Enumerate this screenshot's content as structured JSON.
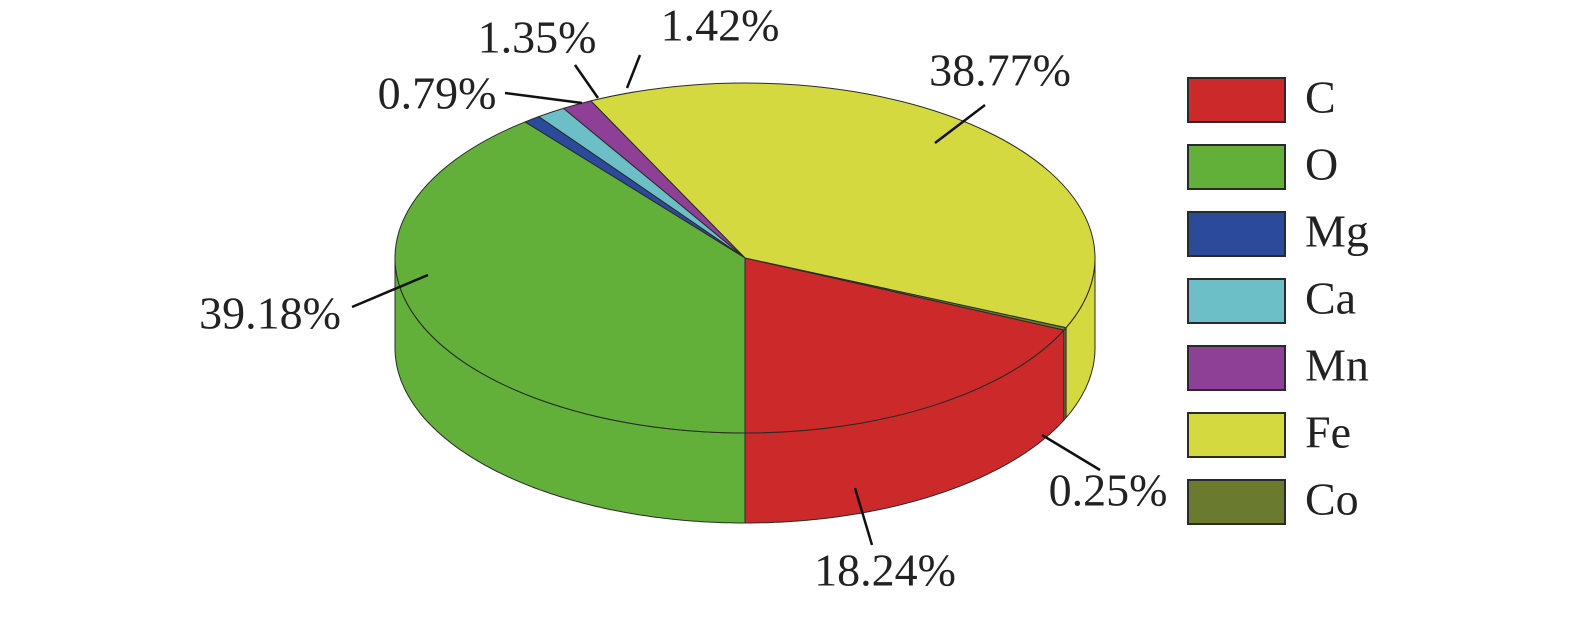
{
  "chart_data": {
    "type": "pie",
    "categories": [
      "C",
      "O",
      "Mg",
      "Ca",
      "Mn",
      "Fe",
      "Co"
    ],
    "values": [
      18.24,
      39.18,
      0.79,
      1.35,
      1.42,
      38.77,
      0.25
    ],
    "value_labels": [
      "18.24%",
      "39.18%",
      "0.79%",
      "1.35%",
      "1.42%",
      "38.77%",
      "0.25%"
    ],
    "colors": [
      "#cc2a2a",
      "#62b03a",
      "#2b4a9c",
      "#6cbfc6",
      "#8e3f96",
      "#d4d940",
      "#6a7a2e"
    ],
    "legend": "right"
  }
}
